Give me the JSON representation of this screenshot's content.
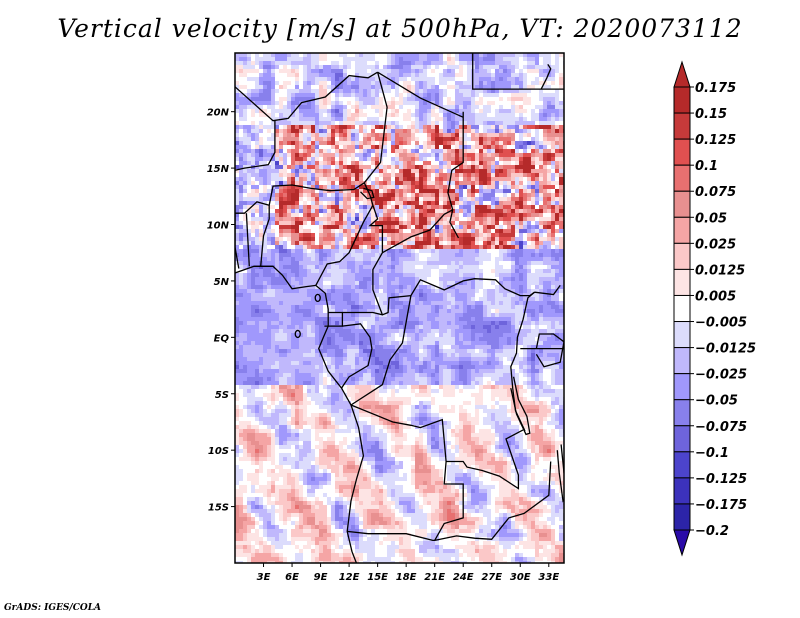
{
  "title": "Vertical velocity [m/s] at 500hPa, VT: 2020073112",
  "footer": "GrADS: IGES/COLA",
  "chart_data": {
    "type": "heatmap",
    "title": "Vertical velocity [m/s] at 500hPa, VT: 2020073112",
    "variable": "Vertical velocity",
    "units": "m/s",
    "level": "500hPa",
    "valid_time": "2020073112",
    "projection": "lat-lon",
    "lon_range": [
      0,
      34.6
    ],
    "lat_range": [
      -20.0,
      25.2
    ],
    "x_ticks": [
      {
        "value": 3,
        "label": "3E"
      },
      {
        "value": 6,
        "label": "6E"
      },
      {
        "value": 9,
        "label": "9E"
      },
      {
        "value": 12,
        "label": "12E"
      },
      {
        "value": 15,
        "label": "15E"
      },
      {
        "value": 18,
        "label": "18E"
      },
      {
        "value": 21,
        "label": "21E"
      },
      {
        "value": 24,
        "label": "24E"
      },
      {
        "value": 27,
        "label": "27E"
      },
      {
        "value": 30,
        "label": "30E"
      },
      {
        "value": 33,
        "label": "33E"
      }
    ],
    "y_ticks": [
      {
        "value": 20,
        "label": "20N"
      },
      {
        "value": 15,
        "label": "15N"
      },
      {
        "value": 10,
        "label": "10N"
      },
      {
        "value": 5,
        "label": "5N"
      },
      {
        "value": 0,
        "label": "EQ"
      },
      {
        "value": -5,
        "label": "5S"
      },
      {
        "value": -10,
        "label": "10S"
      },
      {
        "value": -15,
        "label": "15S"
      }
    ],
    "colorbar": {
      "orientation": "vertical",
      "placement": "right",
      "extend": "both",
      "levels": [
        0.175,
        0.15,
        0.125,
        0.1,
        0.075,
        0.05,
        0.025,
        0.0125,
        0.005,
        -0.005,
        -0.0125,
        -0.025,
        -0.05,
        -0.075,
        -0.1,
        -0.125,
        -0.175,
        -0.2
      ],
      "labels": [
        "0.175",
        "0.15",
        "0.125",
        "0.1",
        "0.075",
        "0.05",
        "0.025",
        "0.0125",
        "0.005",
        "−0.005",
        "−0.0125",
        "−0.025",
        "−0.05",
        "−0.075",
        "−0.1",
        "−0.125",
        "−0.175",
        "−0.2"
      ],
      "colors_top_to_bottom": [
        "#b52a2a",
        "#c63a3a",
        "#e05050",
        "#e87070",
        "#e89090",
        "#f5a5a5",
        "#fbc8c8",
        "#fde4e4",
        "#ffffff",
        "#dcdcfc",
        "#c0b8fc",
        "#a098fc",
        "#8880ec",
        "#6e64dc",
        "#4c44cc",
        "#3c32bc",
        "#2c24a8"
      ],
      "over_color": "#b52a2a",
      "under_color": "#2a0aa8"
    },
    "field_summary": [
      {
        "region": "Sahel / Niger-Chad (10N-20N)",
        "pattern": "strong upward (positive, red) noisy convective cells"
      },
      {
        "region": "Gulf of Guinea / Congo basin",
        "pattern": "mostly weak negative (light blue)"
      },
      {
        "region": "Southern Atlantic (5S-20S, 0-12E)",
        "pattern": "NW-SE banded alternating weak positive/negative"
      },
      {
        "region": "Sahara north of 18N",
        "pattern": "mixed, mostly negative (blue)"
      }
    ]
  }
}
